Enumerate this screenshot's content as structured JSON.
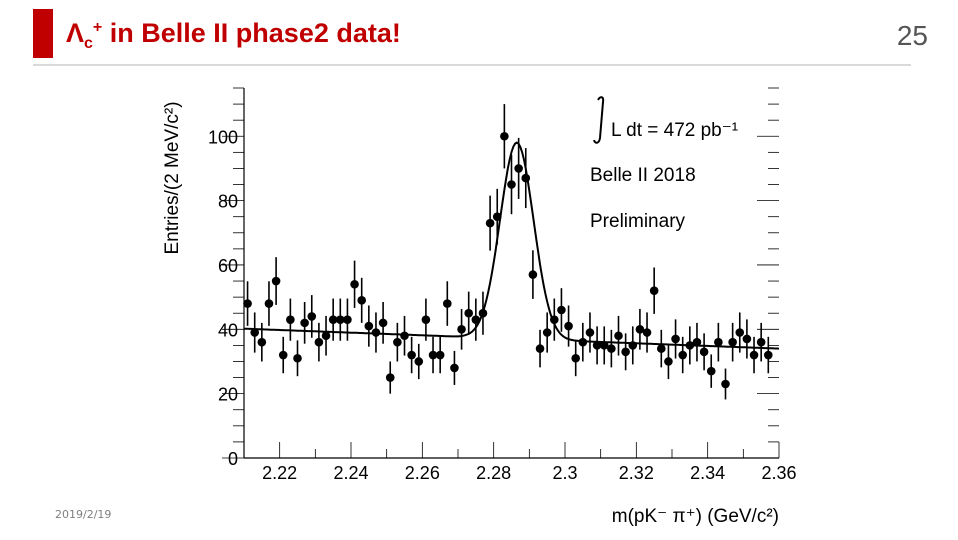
{
  "slide": {
    "title_main": "Λ",
    "title_sub": "c",
    "title_sup": "+",
    "title_rest": " in Belle II phase2 data!",
    "page_number": "25",
    "date": "2019/2/19",
    "accent_color": "#c00000"
  },
  "chart_data": {
    "type": "scatter",
    "title": "",
    "xlabel": "m(pK⁻ π⁺) (GeV/c²)",
    "ylabel": "Entries/(2 MeV/c²)",
    "xlim": [
      2.21,
      2.36
    ],
    "ylim": [
      0,
      115
    ],
    "x_ticks": [
      2.22,
      2.24,
      2.26,
      2.28,
      2.3,
      2.32,
      2.34,
      2.36
    ],
    "x_tick_labels": [
      "2.22",
      "2.24",
      "2.26",
      "2.28",
      "2.3",
      "2.32",
      "2.34",
      "2.36"
    ],
    "y_ticks": [
      0,
      20,
      40,
      60,
      80,
      100
    ],
    "y_tick_labels": [
      "0",
      "20",
      "40",
      "60",
      "80",
      "100"
    ],
    "annotations": [
      "L dt = 472 pb⁻¹",
      "Belle II 2018",
      "Preliminary"
    ],
    "marker_color": "#000000",
    "points": [
      [
        2.211,
        48
      ],
      [
        2.213,
        39
      ],
      [
        2.215,
        36
      ],
      [
        2.217,
        48
      ],
      [
        2.219,
        55
      ],
      [
        2.221,
        32
      ],
      [
        2.223,
        43
      ],
      [
        2.225,
        31
      ],
      [
        2.227,
        42
      ],
      [
        2.229,
        44
      ],
      [
        2.231,
        36
      ],
      [
        2.233,
        38
      ],
      [
        2.235,
        43
      ],
      [
        2.237,
        43
      ],
      [
        2.239,
        43
      ],
      [
        2.241,
        54
      ],
      [
        2.243,
        49
      ],
      [
        2.245,
        41
      ],
      [
        2.247,
        39
      ],
      [
        2.249,
        42
      ],
      [
        2.251,
        25
      ],
      [
        2.253,
        36
      ],
      [
        2.255,
        38
      ],
      [
        2.257,
        32
      ],
      [
        2.259,
        30
      ],
      [
        2.261,
        43
      ],
      [
        2.263,
        32
      ],
      [
        2.265,
        32
      ],
      [
        2.267,
        48
      ],
      [
        2.269,
        28
      ],
      [
        2.271,
        40
      ],
      [
        2.273,
        45
      ],
      [
        2.275,
        43
      ],
      [
        2.277,
        45
      ],
      [
        2.279,
        73
      ],
      [
        2.281,
        75
      ],
      [
        2.283,
        100
      ],
      [
        2.285,
        85
      ],
      [
        2.287,
        90
      ],
      [
        2.289,
        87
      ],
      [
        2.291,
        57
      ],
      [
        2.293,
        34
      ],
      [
        2.295,
        39
      ],
      [
        2.297,
        43
      ],
      [
        2.299,
        46
      ],
      [
        2.301,
        41
      ],
      [
        2.303,
        31
      ],
      [
        2.305,
        36
      ],
      [
        2.307,
        39
      ],
      [
        2.309,
        35
      ],
      [
        2.311,
        35
      ],
      [
        2.313,
        34
      ],
      [
        2.315,
        38
      ],
      [
        2.317,
        33
      ],
      [
        2.319,
        35
      ],
      [
        2.321,
        40
      ],
      [
        2.323,
        39
      ],
      [
        2.325,
        52
      ],
      [
        2.327,
        34
      ],
      [
        2.329,
        30
      ],
      [
        2.331,
        37
      ],
      [
        2.333,
        32
      ],
      [
        2.335,
        35
      ],
      [
        2.337,
        36
      ],
      [
        2.339,
        33
      ],
      [
        2.341,
        27
      ],
      [
        2.343,
        36
      ],
      [
        2.345,
        23
      ],
      [
        2.347,
        36
      ],
      [
        2.349,
        39
      ],
      [
        2.351,
        37
      ],
      [
        2.353,
        32
      ],
      [
        2.355,
        36
      ],
      [
        2.357,
        32
      ]
    ],
    "fit_curve": {
      "background_linear": [
        2.21,
        40.2,
        2.36,
        34.0
      ],
      "signal_peak_x": 2.2865,
      "signal_amplitude": 61,
      "signal_sigma": 0.0047,
      "signal_low_edge": 2.272,
      "signal_low_sigma": 0.003
    }
  }
}
